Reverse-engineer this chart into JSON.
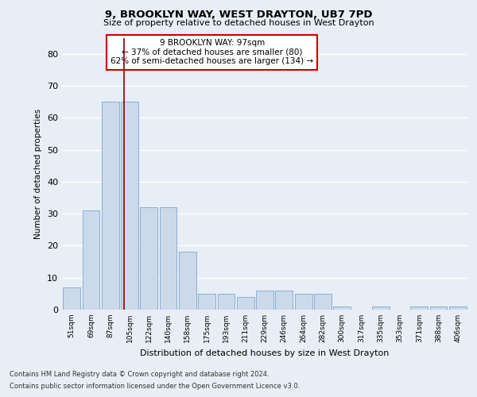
{
  "title1": "9, BROOKLYN WAY, WEST DRAYTON, UB7 7PD",
  "title2": "Size of property relative to detached houses in West Drayton",
  "xlabel": "Distribution of detached houses by size in West Drayton",
  "ylabel": "Number of detached properties",
  "categories": [
    "51sqm",
    "69sqm",
    "87sqm",
    "105sqm",
    "122sqm",
    "140sqm",
    "158sqm",
    "175sqm",
    "193sqm",
    "211sqm",
    "229sqm",
    "246sqm",
    "264sqm",
    "282sqm",
    "300sqm",
    "317sqm",
    "335sqm",
    "353sqm",
    "371sqm",
    "388sqm",
    "406sqm"
  ],
  "values": [
    7,
    31,
    65,
    65,
    32,
    32,
    18,
    5,
    5,
    4,
    6,
    6,
    5,
    5,
    1,
    0,
    1,
    0,
    1,
    1,
    1
  ],
  "bar_color": "#ccd9ea",
  "bar_edge_color": "#8aafd4",
  "red_line_x": 2.72,
  "annotation_text_line1": "9 BROOKLYN WAY: 97sqm",
  "annotation_text_line2": "← 37% of detached houses are smaller (80)",
  "annotation_text_line3": "62% of semi-detached houses are larger (134) →",
  "ylim": [
    0,
    85
  ],
  "yticks": [
    0,
    10,
    20,
    30,
    40,
    50,
    60,
    70,
    80
  ],
  "footnote1": "Contains HM Land Registry data © Crown copyright and database right 2024.",
  "footnote2": "Contains public sector information licensed under the Open Government Licence v3.0.",
  "background_color": "#e8eef5",
  "plot_bg_color": "#e8eef5",
  "grid_color": "#ffffff",
  "annotation_box_color": "#ffffff",
  "annotation_box_edge": "#cc0000",
  "red_line_color": "#8b0000"
}
